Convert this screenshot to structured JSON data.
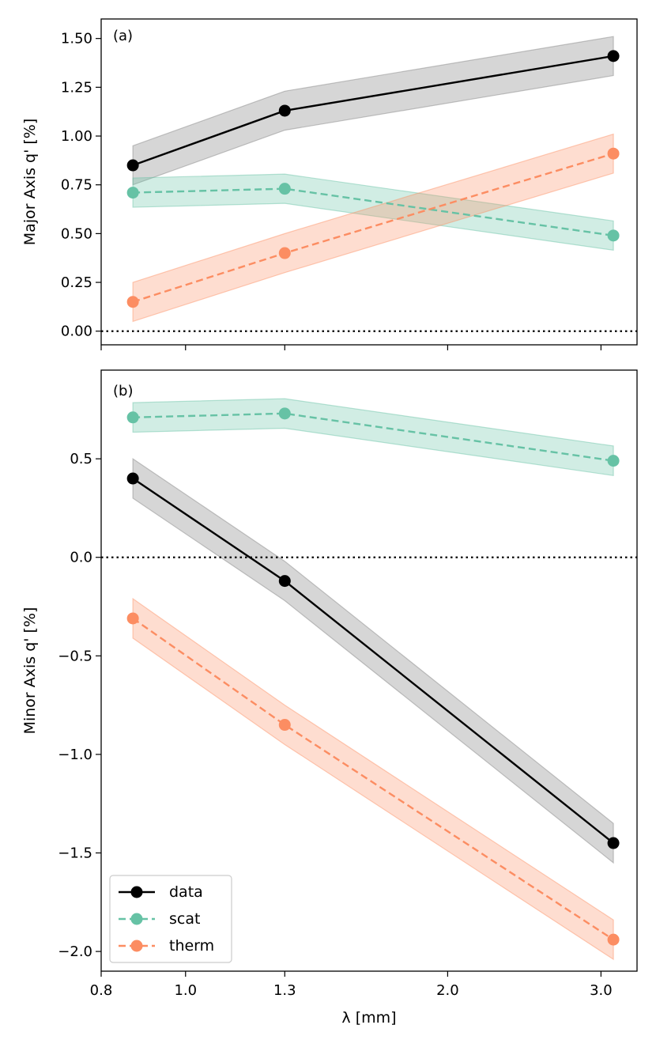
{
  "chart_data": [
    {
      "type": "line",
      "panel_label": "(a)",
      "ylabel": "Major Axis q' [%]",
      "xlabel": "",
      "x": [
        0.87,
        1.3,
        3.1
      ],
      "ylim": [
        -0.07,
        1.6
      ],
      "yticks": [
        0.0,
        0.25,
        0.5,
        0.75,
        1.0,
        1.25,
        1.5
      ],
      "ytick_labels": [
        "0.00",
        "0.25",
        "0.50",
        "0.75",
        "1.00",
        "1.25",
        "1.50"
      ],
      "reference_line": {
        "y": 0.0,
        "style": "dotted"
      },
      "series": [
        {
          "name": "data",
          "color": "#000000",
          "band_color": "#808080",
          "dash": "solid",
          "values": [
            0.85,
            1.13,
            1.41
          ],
          "band_halfwidth": [
            0.1,
            0.1,
            0.1
          ]
        },
        {
          "name": "scat",
          "color": "#66c2a5",
          "band_color": "#66c2a5",
          "dash": "dashed",
          "values": [
            0.71,
            0.73,
            0.49
          ],
          "band_halfwidth": [
            0.075,
            0.075,
            0.075
          ]
        },
        {
          "name": "therm",
          "color": "#fc8d62",
          "band_color": "#fc8d62",
          "dash": "dashed",
          "values": [
            0.15,
            0.4,
            0.91
          ],
          "band_halfwidth": [
            0.1,
            0.1,
            0.1
          ]
        }
      ]
    },
    {
      "type": "line",
      "panel_label": "(b)",
      "ylabel": "Minor Axis q' [%]",
      "xlabel": "λ [mm]",
      "x": [
        0.87,
        1.3,
        3.1
      ],
      "xticks": [
        0.8,
        1.0,
        1.3,
        2.0,
        3.0
      ],
      "xtick_labels": [
        "0.8",
        "1.0",
        "1.3",
        "2.0",
        "3.0"
      ],
      "ylim": [
        -2.1,
        0.95
      ],
      "yticks": [
        -2.0,
        -1.5,
        -1.0,
        -0.5,
        0.0,
        0.5
      ],
      "ytick_labels": [
        "−2.0",
        "−1.5",
        "−1.0",
        "−0.5",
        "0.0",
        "0.5"
      ],
      "reference_line": {
        "y": 0.0,
        "style": "dotted"
      },
      "legend": {
        "position": "lower-left",
        "entries": [
          "data",
          "scat",
          "therm"
        ]
      },
      "series": [
        {
          "name": "data",
          "color": "#000000",
          "band_color": "#808080",
          "dash": "solid",
          "values": [
            0.4,
            -0.12,
            -1.45
          ],
          "band_halfwidth": [
            0.1,
            0.1,
            0.1
          ]
        },
        {
          "name": "scat",
          "color": "#66c2a5",
          "band_color": "#66c2a5",
          "dash": "dashed",
          "values": [
            0.71,
            0.73,
            0.49
          ],
          "band_halfwidth": [
            0.075,
            0.075,
            0.075
          ]
        },
        {
          "name": "therm",
          "color": "#fc8d62",
          "band_color": "#fc8d62",
          "dash": "dashed",
          "values": [
            -0.31,
            -0.85,
            -1.94
          ],
          "band_halfwidth": [
            0.1,
            0.1,
            0.1
          ]
        }
      ]
    }
  ]
}
